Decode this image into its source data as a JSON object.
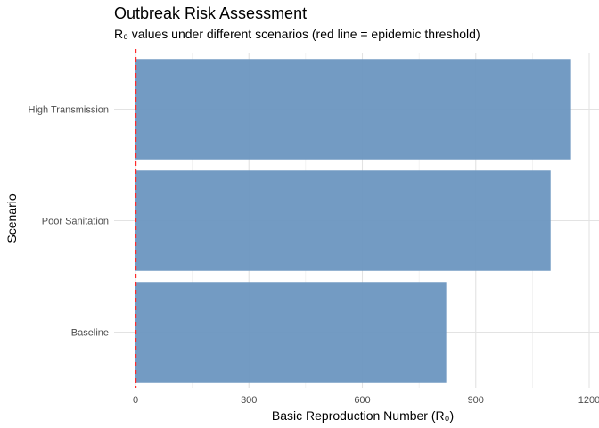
{
  "chart_data": {
    "type": "bar",
    "orientation": "horizontal",
    "title": "Outbreak Risk Assessment",
    "subtitle": "R₀ values under different scenarios (red line = epidemic threshold)",
    "xlabel": "Basic Reproduction Number (R₀)",
    "ylabel": "Scenario",
    "categories": [
      "Baseline",
      "Poor Sanitation",
      "High Transmission"
    ],
    "values": [
      822,
      1098,
      1152
    ],
    "xlim": [
      0,
      1200
    ],
    "xticks": [
      0,
      300,
      600,
      900,
      1200
    ],
    "threshold": 1,
    "bar_color": "#6b96c0",
    "threshold_color": "#ff2a2a",
    "grid": true
  }
}
